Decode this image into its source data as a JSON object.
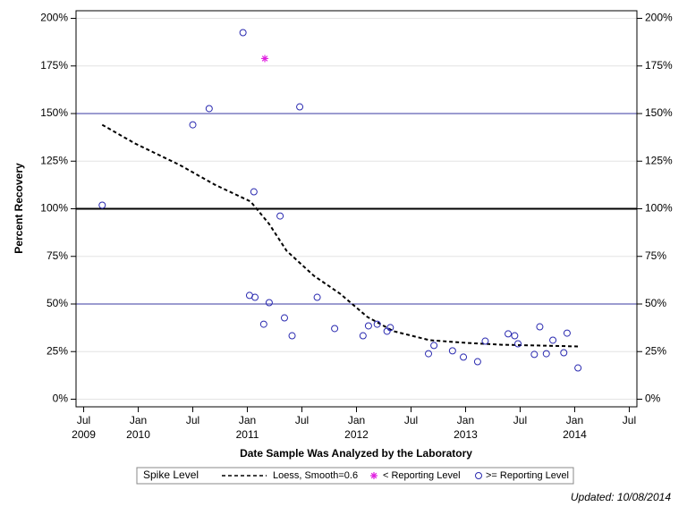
{
  "chart_data": {
    "type": "scatter",
    "xlabel": "Date Sample Was Analyzed by the Laboratory",
    "ylabel": "Percent Recovery",
    "legend_title": "Spike Level",
    "footnote": "Updated: 10/08/2014",
    "xlim": [
      2009.43,
      2014.57
    ],
    "ylim": [
      -4,
      204
    ],
    "xticks": [
      {
        "value": 2009.5,
        "label": "Jul\n2009"
      },
      {
        "value": 2010.0,
        "label": "Jan\n2010"
      },
      {
        "value": 2010.5,
        "label": "Jul"
      },
      {
        "value": 2011.0,
        "label": "Jan\n2011"
      },
      {
        "value": 2011.5,
        "label": "Jul"
      },
      {
        "value": 2012.0,
        "label": "Jan\n2012"
      },
      {
        "value": 2012.5,
        "label": "Jul"
      },
      {
        "value": 2013.0,
        "label": "Jan\n2013"
      },
      {
        "value": 2013.5,
        "label": "Jul"
      },
      {
        "value": 2014.0,
        "label": "Jan\n2014"
      },
      {
        "value": 2014.5,
        "label": "Jul"
      }
    ],
    "yticks": [
      {
        "value": 0,
        "label": "0%"
      },
      {
        "value": 25,
        "label": "25%"
      },
      {
        "value": 50,
        "label": "50%"
      },
      {
        "value": 75,
        "label": "75%"
      },
      {
        "value": 100,
        "label": "100%"
      },
      {
        "value": 125,
        "label": "125%"
      },
      {
        "value": 150,
        "label": "150%"
      },
      {
        "value": 175,
        "label": "175%"
      },
      {
        "value": 200,
        "label": "200%"
      }
    ],
    "grid": true,
    "reference_lines": [
      {
        "value": 50,
        "color": "#3a3aa0",
        "width": 1
      },
      {
        "value": 100,
        "color": "#000000",
        "width": 2
      },
      {
        "value": 150,
        "color": "#3a3aa0",
        "width": 1
      }
    ],
    "series": [
      {
        "name": "Loess, Smooth=0.6",
        "mark": "line",
        "color": "#000000",
        "x": [
          2009.67,
          2009.97,
          2010.38,
          2010.7,
          2011.03,
          2011.2,
          2011.36,
          2011.61,
          2011.85,
          2012.1,
          2012.34,
          2012.67,
          2013.0,
          2013.33,
          2013.66,
          2014.03
        ],
        "values": [
          144.1,
          134.3,
          123,
          112.7,
          103.8,
          92,
          77.9,
          64.8,
          55.4,
          43.2,
          35.7,
          31,
          29.6,
          28.6,
          28.2,
          27.7
        ]
      },
      {
        "name": "< Reporting Level",
        "mark": "star",
        "color": "#e020e0",
        "x": [
          2011.16
        ],
        "values": [
          178.9
        ]
      },
      {
        "name": ">= Reporting Level",
        "mark": "circle",
        "color": "#2a2ab0",
        "x": [
          2009.67,
          2010.5,
          2010.65,
          2010.96,
          2011.06,
          2011.02,
          2011.07,
          2011.15,
          2011.2,
          2011.3,
          2011.34,
          2011.41,
          2011.48,
          2011.64,
          2011.8,
          2012.06,
          2012.11,
          2012.19,
          2012.28,
          2012.31,
          2012.66,
          2012.71,
          2012.88,
          2012.98,
          2013.11,
          2013.18,
          2013.39,
          2013.45,
          2013.48,
          2013.63,
          2013.68,
          2013.74,
          2013.8,
          2013.9,
          2013.93,
          2014.03
        ],
        "values": [
          101.9,
          144.1,
          152.6,
          192.5,
          108.9,
          54.5,
          53.5,
          39.4,
          50.7,
          96.2,
          42.7,
          33.3,
          153.5,
          53.5,
          37.1,
          33.3,
          38.5,
          39.4,
          35.7,
          37.6,
          23.9,
          28.2,
          25.4,
          22.1,
          19.7,
          30.5,
          34.3,
          33.3,
          29.1,
          23.5,
          38.0,
          23.9,
          31.0,
          24.4,
          34.7,
          16.4
        ]
      }
    ]
  }
}
